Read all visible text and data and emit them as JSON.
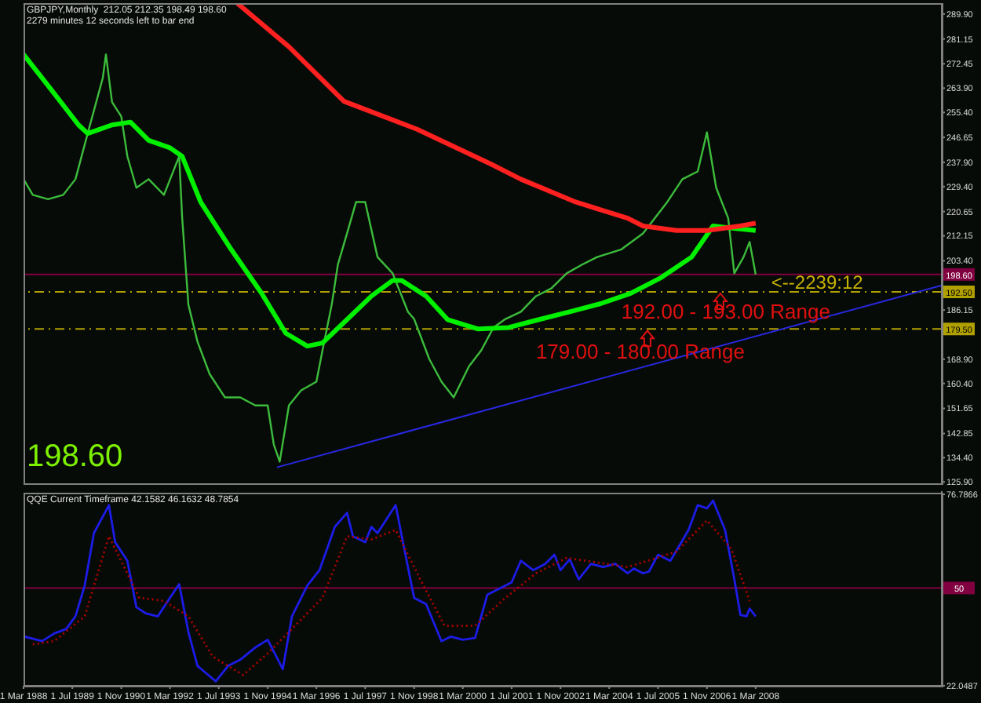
{
  "chart_data": [
    {
      "type": "line",
      "title": "GBPJPY,Monthly  212.05 212.35 198.49 198.60",
      "subtitle": "2279 minutes 12 seconds left to bar end",
      "tick_labels": "y",
      "xlim": [
        "1988-03",
        "2013-04"
      ],
      "ylim": [
        125.4,
        293.7
      ],
      "yticks": [
        {
          "value": 289.9,
          "label": "289.90"
        },
        281.15,
        272.45,
        {
          "value": 263.9,
          "label": "263.90"
        },
        {
          "value": 255.4,
          "label": "255.40"
        },
        246.65,
        {
          "value": 237.9,
          "label": "237.90"
        },
        {
          "value": 229.4,
          "label": "229.40"
        },
        220.65,
        212.15,
        {
          "value": 203.4,
          "label": "203.40"
        },
        186.15,
        {
          "value": 168.9,
          "label": "168.90"
        },
        {
          "value": 160.4,
          "label": "160.40"
        },
        151.65,
        142.85,
        {
          "value": 134.4,
          "label": "134.40"
        },
        {
          "value": 125.9,
          "label": "125.90"
        }
      ],
      "series": [
        {
          "type": "line",
          "color": "#3cbc3c",
          "x": [
            "1988-03",
            "1988-06",
            "1988-11",
            "1989-04",
            "1989-08",
            "1989-12",
            "1990-05",
            "1990-06",
            "1990-08",
            "1990-11",
            "1991-01",
            "1991-04",
            "1991-08",
            "1992-01",
            "1992-06",
            "1992-07",
            "1992-09",
            "1992-12",
            "1993-04",
            "1993-09",
            "1994-02",
            "1994-07",
            "1994-11",
            "1995-01",
            "1995-03",
            "1995-06",
            "1995-10",
            "1996-03",
            "1996-05",
            "1996-08",
            "1996-10",
            "1997-01",
            "1997-04",
            "1997-07",
            "1997-11",
            "1998-04",
            "1998-09",
            "1998-11",
            "1999-04",
            "1999-08",
            "1999-12",
            "2000-05",
            "2000-09",
            "2001-01",
            "2001-05",
            "2001-10",
            "2002-03",
            "2002-08",
            "2003-01",
            "2003-06",
            "2003-11",
            "2004-07",
            "2005-02",
            "2005-10",
            "2006-03",
            "2006-08",
            "2006-11",
            "2007-02",
            "2007-06",
            "2007-08",
            "2007-11",
            "2008-01",
            "2008-03"
          ],
          "values": [
            232,
            226.5,
            225,
            226.5,
            232,
            248,
            267.5,
            275.7,
            259,
            254,
            240,
            229,
            232,
            226.5,
            240,
            218.3,
            188,
            175,
            163.7,
            155.5,
            155.5,
            152.7,
            152.7,
            139,
            133,
            152.7,
            158,
            161,
            172,
            188,
            202,
            213,
            224,
            224,
            204.7,
            199,
            185.5,
            183,
            169,
            161,
            155.5,
            166.4,
            172,
            180,
            183,
            185.5,
            191,
            193.7,
            199,
            202,
            204.7,
            207.4,
            213,
            224,
            232,
            234.7,
            248.4,
            229,
            218.3,
            199,
            204.7,
            210,
            198.6
          ]
        },
        {
          "type": "line",
          "color": "#00f000",
          "x": [
            "1988-03",
            "1988-11",
            "1989-09",
            "1989-12",
            "1990-08",
            "1991-02",
            "1991-08",
            "1992-03",
            "1992-07",
            "1993-01",
            "1993-11",
            "1994-09",
            "1995-05",
            "1995-12",
            "1996-05",
            "1997-01",
            "1997-09",
            "1998-04",
            "1998-07",
            "1999-03",
            "1999-10",
            "2000-08",
            "2001-06",
            "2002-04",
            "2003-02",
            "2003-12",
            "2004-10",
            "2005-08",
            "2006-06",
            "2007-01",
            "2007-06",
            "2008-03"
          ],
          "values": [
            275.7,
            264.8,
            251,
            248,
            251,
            252,
            245.6,
            243,
            240,
            224,
            207.4,
            192,
            178,
            173.5,
            174.6,
            182.8,
            191,
            196.5,
            196.5,
            191,
            182.8,
            179.5,
            180,
            182.8,
            185.5,
            188.3,
            192,
            197.5,
            204.7,
            215.6,
            215,
            214
          ]
        },
        {
          "type": "line",
          "color": "#ff2020",
          "x": [
            "1994-01",
            "1995-06",
            "1996-12",
            "1998-12",
            "2000-12",
            "2001-10",
            "2003-04",
            "2004-09",
            "2005-02",
            "2006-01",
            "2006-11",
            "2007-10",
            "2008-03"
          ],
          "values": [
            293.7,
            278.4,
            259.3,
            249.5,
            237.4,
            232,
            224,
            218.3,
            215.6,
            214,
            214,
            215.6,
            216.6
          ]
        },
        {
          "type": "line",
          "color": "#2828e0",
          "x": [
            "1995-02",
            "2013-04"
          ],
          "values": [
            131,
            194.8
          ]
        }
      ],
      "ref_lines": [
        {
          "axis": "y",
          "value": 198.6,
          "label": "198.60",
          "color": "#800040",
          "line_style": "solid"
        },
        {
          "axis": "y",
          "value": 192.5,
          "label": "192.50",
          "color": "#b0a000",
          "line_style": "dashed"
        },
        {
          "axis": "y",
          "value": 179.5,
          "label": "179.50",
          "color": "#b0a000",
          "line_style": "dashed"
        }
      ],
      "annotations": [
        "198.60",
        {
          "text": "<--2239:12",
          "x": "2008-03",
          "y": 198.6
        },
        {
          "text": "192.00 - 193.00 Range",
          "x": "2004-07",
          "y": 192.5
        },
        {
          "text": "179.00 - 180.00  Range",
          "x": "2002-03",
          "y": 179.5
        }
      ]
    },
    {
      "type": "line",
      "title": "QQE Current Timeframe 42.1582 46.1632 48.7854",
      "tick_labels": "xy",
      "xlim": [
        "1988-03",
        "2013-04"
      ],
      "xticks": [
        {
          "value": "1988-03",
          "label": "1 Mar 1988"
        },
        {
          "value": "1989-07",
          "label": "1 Jul 1989"
        },
        {
          "value": "1990-11",
          "label": "1 Nov 1990"
        },
        {
          "value": "1992-03",
          "label": "1 Mar 1992"
        },
        {
          "value": "1993-07",
          "label": "1 Jul 1993"
        },
        {
          "value": "1994-11",
          "label": "1 Nov 1994"
        },
        {
          "value": "1996-03",
          "label": "1 Mar 1996"
        },
        {
          "value": "1997-07",
          "label": "1 Jul 1997"
        },
        {
          "value": "1998-11",
          "label": "1 Nov 1998"
        },
        {
          "value": "2000-03",
          "label": "1 Mar 2000"
        },
        {
          "value": "2001-07",
          "label": "1 Jul 2001"
        },
        {
          "value": "2002-11",
          "label": "1 Nov 2002"
        },
        {
          "value": "2004-03",
          "label": "1 Mar 2004"
        },
        {
          "value": "2005-07",
          "label": "1 Jul 2005"
        },
        {
          "value": "2006-11",
          "label": "1 Nov 2006"
        },
        {
          "value": "2008-03",
          "label": "1 Mar 2008"
        }
      ],
      "ylim": [
        22.0487,
        77.7
      ],
      "yticks": [
        76.7866,
        22.0487
      ],
      "series": [
        {
          "type": "line",
          "color": "#1c1ce6",
          "x": [
            "1988-03",
            "1988-09",
            "1989-01",
            "1989-05",
            "1989-08",
            "1989-11",
            "1990-02",
            "1990-07",
            "1990-09",
            "1991-01",
            "1991-04",
            "1991-07",
            "1991-11",
            "1992-03",
            "1992-06",
            "1992-09",
            "1992-12",
            "1993-06",
            "1993-10",
            "1994-02",
            "1994-07",
            "1994-11",
            "1995-04",
            "1995-07",
            "1995-12",
            "1996-04",
            "1996-09",
            "1997-01",
            "1997-03",
            "1997-07",
            "1997-09",
            "1997-11",
            "1998-05",
            "1998-07",
            "1998-11",
            "1999-03",
            "1999-08",
            "1999-11",
            "2000-03",
            "2000-07",
            "2000-11",
            "2001-03",
            "2001-07",
            "2001-10",
            "2002-02",
            "2002-06",
            "2002-09",
            "2002-11",
            "2003-02",
            "2003-05",
            "2003-09",
            "2004-01",
            "2004-05",
            "2004-09",
            "2004-11",
            "2005-02",
            "2005-04",
            "2005-07",
            "2005-11",
            "2006-02",
            "2006-05",
            "2006-08",
            "2006-11",
            "2007-01",
            "2007-05",
            "2007-08",
            "2007-10",
            "2007-12",
            "2008-01",
            "2008-03"
          ],
          "values": [
            36.2,
            34.8,
            37,
            38.3,
            41.9,
            50.7,
            65.7,
            73.7,
            63.1,
            57.8,
            44.5,
            42.8,
            41.9,
            47.2,
            51.1,
            37.4,
            27.7,
            23.3,
            27.7,
            29.5,
            33,
            35.2,
            26.8,
            41.9,
            50.7,
            55.1,
            67.5,
            71.5,
            64.8,
            63.1,
            67.5,
            65.7,
            73.7,
            64.8,
            47.2,
            45.4,
            34.8,
            36.1,
            35.2,
            35.7,
            48.1,
            49.8,
            51.6,
            57.8,
            55.1,
            56.9,
            59.5,
            55.1,
            58.2,
            52.5,
            56.9,
            56,
            56.9,
            54.2,
            55.6,
            54.2,
            54.7,
            59.5,
            57.8,
            62.2,
            66.6,
            73.7,
            72.8,
            75,
            66.6,
            52.5,
            42.3,
            41.9,
            44.1,
            41.9
          ]
        },
        {
          "type": "line",
          "color": "#b00000",
          "line_style": "dotted",
          "x": [
            "1988-06",
            "1989-01",
            "1989-11",
            "1990-07",
            "1991-05",
            "1992-01",
            "1992-09",
            "1993-05",
            "1994-03",
            "1994-11",
            "1995-07",
            "1996-05",
            "1997-01",
            "1997-09",
            "1998-05",
            "1999-01",
            "1999-09",
            "2000-07",
            "2001-05",
            "2002-03",
            "2003-01",
            "2004-09",
            "2006-01",
            "2006-11",
            "2007-07",
            "2008-01"
          ],
          "values": [
            33.9,
            34.8,
            41.9,
            64.8,
            47.2,
            46.3,
            41.9,
            30.4,
            25.1,
            31.3,
            38.3,
            47.2,
            64.8,
            63.9,
            66.6,
            52.5,
            39.2,
            39.2,
            47.2,
            54.2,
            58.6,
            56,
            60.4,
            69.3,
            61.3,
            46.3
          ]
        }
      ],
      "ref_lines": [
        {
          "axis": "y",
          "value": 50,
          "label": "50",
          "color": "#800040",
          "line_style": "solid"
        }
      ]
    }
  ]
}
